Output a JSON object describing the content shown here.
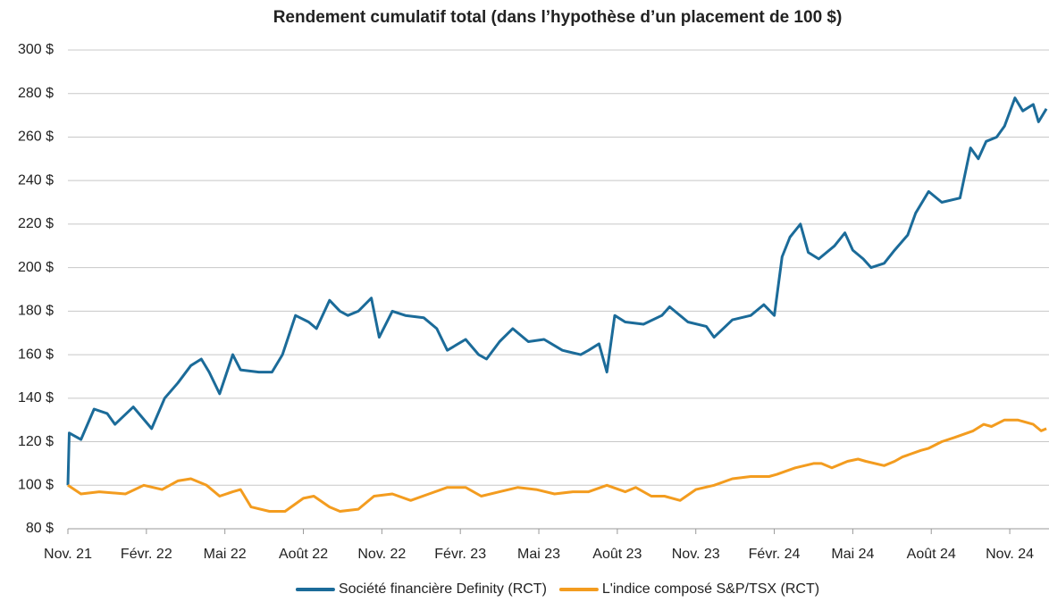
{
  "chart_data": {
    "type": "line",
    "title": "Rendement cumulatif total (dans l’hypothèse d’un placement de 100 $)",
    "xlim": [
      0,
      37.5
    ],
    "xticks": [
      {
        "value": 0,
        "label": "Nov. 21"
      },
      {
        "value": 3,
        "label": "Févr. 22"
      },
      {
        "value": 6,
        "label": "Mai 22"
      },
      {
        "value": 9,
        "label": "Août 22"
      },
      {
        "value": 12,
        "label": "Nov. 22"
      },
      {
        "value": 15,
        "label": "Févr. 23"
      },
      {
        "value": 18,
        "label": "Mai 23"
      },
      {
        "value": 21,
        "label": "Août 23"
      },
      {
        "value": 24,
        "label": "Nov. 23"
      },
      {
        "value": 27,
        "label": "Févr. 24"
      },
      {
        "value": 30,
        "label": "Mai 24"
      },
      {
        "value": 33,
        "label": "Août 24"
      },
      {
        "value": 36,
        "label": "Nov. 24"
      }
    ],
    "ylim": [
      80,
      300
    ],
    "yticks": [
      {
        "value": 80,
        "label": "80 $"
      },
      {
        "value": 100,
        "label": "100 $"
      },
      {
        "value": 120,
        "label": "120 $"
      },
      {
        "value": 140,
        "label": "140 $"
      },
      {
        "value": 160,
        "label": "160 $"
      },
      {
        "value": 180,
        "label": "180 $"
      },
      {
        "value": 200,
        "label": "200 $"
      },
      {
        "value": 220,
        "label": "220 $"
      },
      {
        "value": 240,
        "label": "240 $"
      },
      {
        "value": 260,
        "label": "260 $"
      },
      {
        "value": 280,
        "label": "280 $"
      },
      {
        "value": 300,
        "label": "300 $"
      }
    ],
    "grid": true,
    "legend": "bottom",
    "series": [
      {
        "name": "Société financière Definity (RCT)",
        "color": "#1b6b99",
        "x": [
          0,
          0.05,
          0.5,
          1.0,
          1.5,
          1.8,
          2.5,
          3.2,
          3.7,
          4.2,
          4.7,
          5.1,
          5.4,
          5.8,
          6.3,
          6.6,
          7.3,
          7.8,
          8.2,
          8.7,
          9.2,
          9.5,
          10.0,
          10.4,
          10.7,
          11.1,
          11.6,
          11.9,
          12.4,
          12.9,
          13.6,
          14.1,
          14.5,
          15.2,
          15.7,
          16.0,
          16.5,
          17.0,
          17.6,
          18.2,
          18.9,
          19.6,
          19.9,
          20.3,
          20.6,
          20.9,
          21.3,
          22.0,
          22.7,
          23.0,
          23.7,
          24.4,
          24.7,
          25.4,
          26.1,
          26.6,
          27.0,
          27.3,
          27.6,
          28.0,
          28.3,
          28.7,
          29.3,
          29.7,
          30.0,
          30.4,
          30.7,
          31.2,
          31.6,
          32.1,
          32.4,
          32.9,
          33.4,
          34.1,
          34.5,
          34.8,
          35.1,
          35.5,
          35.8,
          36.2,
          36.5,
          36.9,
          37.1,
          37.4
        ],
        "values": [
          100,
          124,
          121,
          135,
          133,
          128,
          136,
          126,
          140,
          147,
          155,
          158,
          152,
          142,
          160,
          153,
          152,
          152,
          160,
          178,
          175,
          172,
          185,
          180,
          178,
          180,
          186,
          168,
          180,
          178,
          177,
          172,
          162,
          167,
          160,
          158,
          166,
          172,
          166,
          167,
          162,
          160,
          162,
          165,
          152,
          178,
          175,
          174,
          178,
          182,
          175,
          173,
          168,
          176,
          178,
          183,
          178,
          205,
          214,
          220,
          207,
          204,
          210,
          216,
          208,
          204,
          200,
          202,
          208,
          215,
          225,
          235,
          230,
          232,
          255,
          250,
          258,
          260,
          265,
          278,
          272,
          275,
          267,
          273
        ]
      },
      {
        "name": "L'indice composé S&P/TSX (RCT)",
        "color": "#f39c1f",
        "x": [
          0,
          0.5,
          1.2,
          2.2,
          2.9,
          3.6,
          4.2,
          4.7,
          5.3,
          5.8,
          6.3,
          6.6,
          7.0,
          7.7,
          8.3,
          9.0,
          9.4,
          10.0,
          10.4,
          11.1,
          11.7,
          12.4,
          13.1,
          13.8,
          14.5,
          15.2,
          15.8,
          16.5,
          17.2,
          17.9,
          18.6,
          19.3,
          19.9,
          20.6,
          21.3,
          21.7,
          22.3,
          22.8,
          23.4,
          24.0,
          24.7,
          25.4,
          26.1,
          26.8,
          27.1,
          27.8,
          28.5,
          28.8,
          29.2,
          29.8,
          30.2,
          30.5,
          31.2,
          31.6,
          31.9,
          32.6,
          32.9,
          33.4,
          33.9,
          34.6,
          35.0,
          35.3,
          35.8,
          36.3,
          36.9,
          37.2,
          37.4
        ],
        "values": [
          100,
          96,
          97,
          96,
          100,
          98,
          102,
          103,
          100,
          95,
          97,
          98,
          90,
          88,
          88,
          94,
          95,
          90,
          88,
          89,
          95,
          96,
          93,
          96,
          99,
          99,
          95,
          97,
          99,
          98,
          96,
          97,
          97,
          100,
          97,
          99,
          95,
          95,
          93,
          98,
          100,
          103,
          104,
          104,
          105,
          108,
          110,
          110,
          108,
          111,
          112,
          111,
          109,
          111,
          113,
          116,
          117,
          120,
          122,
          125,
          128,
          127,
          130,
          130,
          128,
          125,
          126
        ]
      }
    ]
  }
}
